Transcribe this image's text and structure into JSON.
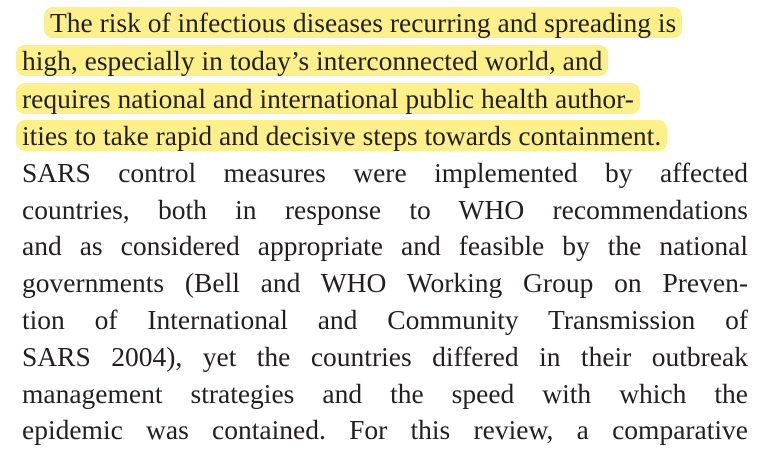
{
  "highlight_color": "#fdf08a",
  "text_color": "#231f20",
  "paragraph": {
    "lines": [
      "The risk of infectious diseases recurring and spreading is",
      "high, especially in today’s interconnected world, and",
      "requires national and international public health author-",
      "ities to take rapid and decisive steps towards containment.",
      "SARS control measures were implemented by affected",
      "countries, both in response to WHO recommendations",
      "and as considered appropriate and feasible by the national",
      "governments (Bell and WHO Working Group on Preven-",
      "tion of International and Community Transmission of",
      "SARS 2004), yet the countries differed in their outbreak",
      "management strategies and the speed with which the",
      "epidemic was contained. For this review, a comparative"
    ]
  }
}
